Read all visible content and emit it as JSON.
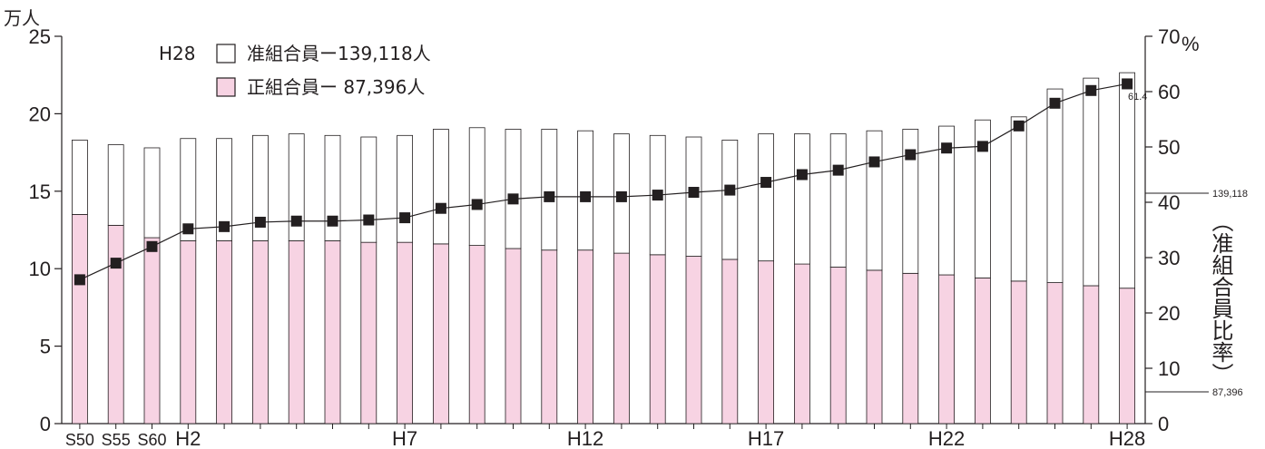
{
  "chart_data": {
    "type": "bar+line",
    "left_unit": "万人",
    "right_unit": "%",
    "right_axis_label": "（准組合員比率）",
    "left_ylim": [
      0,
      25
    ],
    "left_ticks": [
      "0",
      "5",
      "10",
      "15",
      "20",
      "25"
    ],
    "right_ylim": [
      0,
      70
    ],
    "right_ticks": [
      "0",
      "10",
      "20",
      "30",
      "40",
      "50",
      "60",
      "70"
    ],
    "x_tick_labels": [
      "S50",
      "S55",
      "S60",
      "H2",
      "",
      "",
      "",
      "",
      "",
      "H7",
      "",
      "",
      "",
      "",
      "H12",
      "",
      "",
      "",
      "",
      "H17",
      "",
      "",
      "",
      "",
      "H22",
      "",
      "",
      "",
      "",
      "H28"
    ],
    "legend": {
      "year": "H28",
      "associate_label": "准組合員ー139,118人",
      "regular_label": "正組合員ー 87,396人"
    },
    "series": [
      {
        "name": "正組合員",
        "color": "#f7d3e3",
        "values": [
          13.5,
          12.8,
          12.0,
          11.8,
          11.8,
          11.8,
          11.8,
          11.8,
          11.7,
          11.7,
          11.6,
          11.5,
          11.3,
          11.2,
          11.2,
          11.0,
          10.9,
          10.8,
          10.6,
          10.5,
          10.3,
          10.1,
          9.9,
          9.7,
          9.6,
          9.4,
          9.2,
          9.1,
          8.9,
          8.74
        ]
      },
      {
        "name": "准組合員",
        "color": "#ffffff",
        "values": [
          4.8,
          5.2,
          5.8,
          6.6,
          6.6,
          6.8,
          6.9,
          6.8,
          6.8,
          6.9,
          7.4,
          7.6,
          7.7,
          7.8,
          7.7,
          7.7,
          7.7,
          7.7,
          7.7,
          8.2,
          8.4,
          8.6,
          9.0,
          9.3,
          9.6,
          10.2,
          10.6,
          12.5,
          13.4,
          13.91
        ]
      },
      {
        "name": "准組合員比率",
        "color": "#231f20",
        "axis": "right",
        "values": [
          26.0,
          29.0,
          32.0,
          35.2,
          35.6,
          36.4,
          36.6,
          36.6,
          36.8,
          37.2,
          38.9,
          39.6,
          40.6,
          41.0,
          41.0,
          41.0,
          41.3,
          41.8,
          42.2,
          43.6,
          45.0,
          45.8,
          47.3,
          48.6,
          49.8,
          50.1,
          53.8,
          57.9,
          60.2,
          61.4
        ]
      }
    ],
    "annotations": {
      "last_ratio": "61.4",
      "associate_count": "139,118",
      "regular_count": "87,396"
    }
  }
}
